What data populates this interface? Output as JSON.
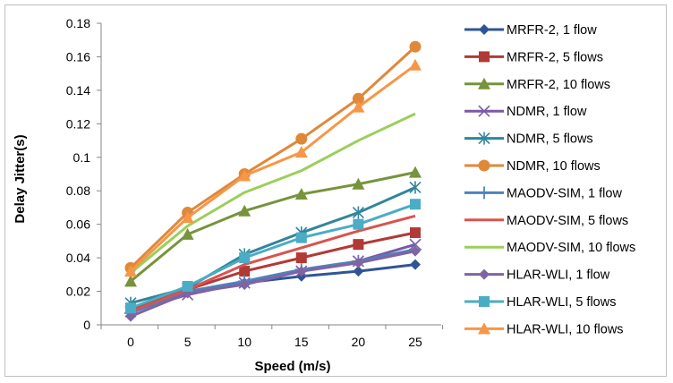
{
  "chart_data": {
    "type": "line",
    "xlabel": "Speed (m/s)",
    "ylabel": "Delay Jitter(s)",
    "x": [
      0,
      5,
      10,
      15,
      20,
      25
    ],
    "ylim": [
      0,
      0.18
    ],
    "yticks": [
      0,
      0.02,
      0.04,
      0.06,
      0.08,
      0.1,
      0.12,
      0.14,
      0.16,
      0.18
    ],
    "ytick_labels": [
      "0",
      "0.02",
      "0.04",
      "0.06",
      "0.08",
      "0.1",
      "0.12",
      "0.14",
      "0.16",
      "0.18"
    ],
    "xtick_labels": [
      "0",
      "5",
      "10",
      "15",
      "20",
      "25"
    ],
    "grid": false,
    "legend_position": "right",
    "series": [
      {
        "name": "MRFR-2, 1 flow",
        "color": "#2f5597",
        "marker": "diamond",
        "values": [
          0.009,
          0.019,
          0.025,
          0.029,
          0.032,
          0.036
        ]
      },
      {
        "name": "MRFR-2, 5 flows",
        "color": "#b03a35",
        "marker": "square",
        "values": [
          0.01,
          0.021,
          0.032,
          0.04,
          0.048,
          0.055
        ]
      },
      {
        "name": "MRFR-2, 10 flows",
        "color": "#77933c",
        "marker": "triangle",
        "values": [
          0.026,
          0.054,
          0.068,
          0.078,
          0.084,
          0.091
        ]
      },
      {
        "name": "NDMR, 1 flow",
        "color": "#7a5aa6",
        "marker": "x",
        "values": [
          0.008,
          0.018,
          0.025,
          0.032,
          0.038,
          0.048
        ]
      },
      {
        "name": "NDMR, 5 flows",
        "color": "#31859c",
        "marker": "asterisk",
        "values": [
          0.013,
          0.022,
          0.042,
          0.055,
          0.067,
          0.082
        ]
      },
      {
        "name": "NDMR, 10 flows",
        "color": "#e0883a",
        "marker": "circle",
        "values": [
          0.034,
          0.067,
          0.09,
          0.111,
          0.135,
          0.166
        ]
      },
      {
        "name": "MAODV-SIM, 1 flow",
        "color": "#4f81bd",
        "marker": "plus",
        "values": [
          0.007,
          0.02,
          0.026,
          0.033,
          0.038,
          0.045
        ]
      },
      {
        "name": "MAODV-SIM, 5 flows",
        "color": "#d9534f",
        "marker": "none",
        "values": [
          0.008,
          0.021,
          0.036,
          0.046,
          0.056,
          0.065
        ]
      },
      {
        "name": "MAODV-SIM, 10 flows",
        "color": "#9bcf5a",
        "marker": "none",
        "values": [
          0.031,
          0.059,
          0.079,
          0.092,
          0.11,
          0.126
        ]
      },
      {
        "name": "HLAR-WLI, 1 flow",
        "color": "#8064a2",
        "marker": "diamond",
        "values": [
          0.005,
          0.019,
          0.024,
          0.032,
          0.037,
          0.044
        ]
      },
      {
        "name": "HLAR-WLI, 5 flows",
        "color": "#4bacc6",
        "marker": "square",
        "values": [
          0.01,
          0.023,
          0.04,
          0.052,
          0.06,
          0.072
        ]
      },
      {
        "name": "HLAR-WLI, 10 flows",
        "color": "#f79646",
        "marker": "triangle",
        "values": [
          0.032,
          0.064,
          0.089,
          0.103,
          0.13,
          0.155
        ]
      }
    ]
  }
}
